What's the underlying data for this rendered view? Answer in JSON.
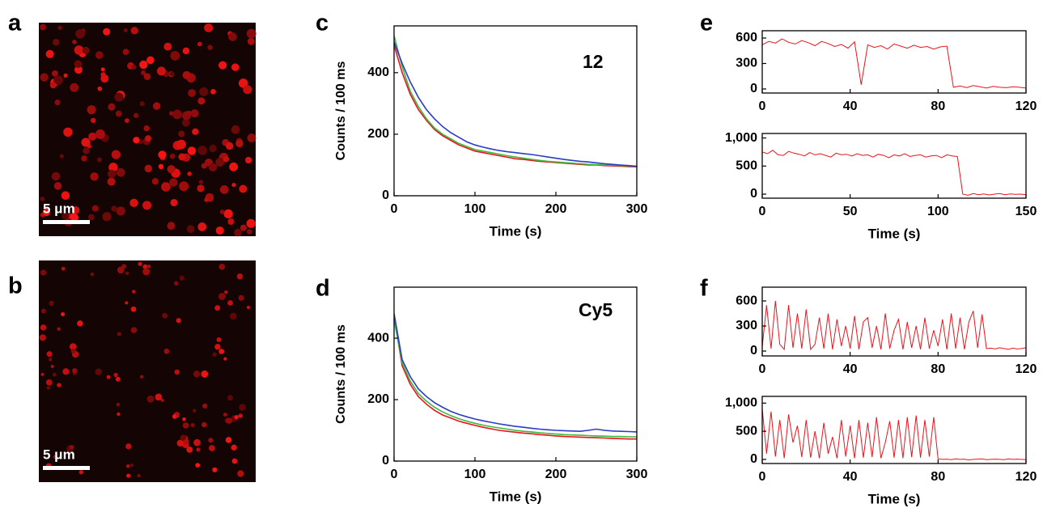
{
  "chart_data": [
    {
      "type": "image",
      "panel": "a",
      "scale_label": "5 μm"
    },
    {
      "type": "image",
      "panel": "b",
      "scale_label": "5 μm"
    },
    {
      "type": "line",
      "panel": "c",
      "annotation": "12",
      "xlabel": "Time (s)",
      "ylabel": "Counts / 100 ms",
      "xlim": [
        0,
        300
      ],
      "ylim": [
        0,
        552
      ],
      "xticks": [
        0,
        100,
        200,
        300
      ],
      "yticks": [
        0,
        200,
        400
      ],
      "x": [
        0,
        10,
        20,
        30,
        40,
        50,
        60,
        70,
        80,
        90,
        100,
        110,
        120,
        130,
        140,
        150,
        160,
        170,
        180,
        190,
        200,
        210,
        220,
        230,
        240,
        250,
        260,
        270,
        280,
        290,
        300
      ],
      "series": [
        {
          "color": "#e8141c",
          "values": [
            490,
            400,
            330,
            280,
            245,
            215,
            195,
            180,
            165,
            155,
            145,
            140,
            135,
            130,
            125,
            120,
            118,
            115,
            112,
            110,
            108,
            106,
            104,
            102,
            100,
            100,
            98,
            97,
            96,
            95,
            94
          ]
        },
        {
          "color": "#3cb93c",
          "values": [
            520,
            420,
            340,
            290,
            250,
            220,
            200,
            185,
            170,
            160,
            150,
            145,
            140,
            135,
            130,
            126,
            122,
            118,
            115,
            112,
            110,
            108,
            106,
            104,
            102,
            101,
            100,
            99,
            98,
            97,
            96
          ]
        },
        {
          "color": "#2b3bc4",
          "values": [
            500,
            430,
            370,
            320,
            280,
            250,
            225,
            205,
            190,
            175,
            165,
            158,
            152,
            147,
            143,
            140,
            137,
            134,
            130,
            126,
            122,
            118,
            115,
            112,
            110,
            107,
            104,
            102,
            100,
            98,
            96
          ]
        }
      ]
    },
    {
      "type": "line",
      "panel": "d",
      "annotation": "Cy5",
      "xlabel": "Time (s)",
      "ylabel": "Counts / 100 ms",
      "xlim": [
        0,
        300
      ],
      "ylim": [
        0,
        566
      ],
      "xticks": [
        0,
        100,
        200,
        300
      ],
      "yticks": [
        0,
        200,
        400
      ],
      "x": [
        0,
        10,
        20,
        30,
        40,
        50,
        60,
        70,
        80,
        90,
        100,
        110,
        120,
        130,
        140,
        150,
        160,
        170,
        180,
        190,
        200,
        210,
        220,
        230,
        240,
        250,
        260,
        270,
        280,
        290,
        300
      ],
      "series": [
        {
          "color": "#e8141c",
          "values": [
            470,
            310,
            250,
            210,
            185,
            165,
            150,
            140,
            130,
            123,
            116,
            110,
            105,
            100,
            97,
            94,
            91,
            89,
            86,
            84,
            82,
            80,
            79,
            78,
            77,
            76,
            75,
            74,
            73,
            72,
            72
          ]
        },
        {
          "color": "#3cb93c",
          "values": [
            460,
            320,
            260,
            220,
            195,
            175,
            160,
            148,
            138,
            130,
            123,
            117,
            112,
            108,
            104,
            100,
            97,
            95,
            92,
            90,
            88,
            86,
            85,
            84,
            83,
            82,
            81,
            80,
            80,
            79,
            79
          ]
        },
        {
          "color": "#2b3bc4",
          "values": [
            480,
            330,
            275,
            235,
            210,
            190,
            175,
            162,
            152,
            144,
            137,
            131,
            126,
            121,
            117,
            113,
            110,
            107,
            104,
            102,
            100,
            99,
            98,
            97,
            100,
            104,
            100,
            98,
            97,
            96,
            95
          ]
        }
      ]
    },
    {
      "type": "line",
      "panel": "e",
      "xlim": [
        0,
        120
      ],
      "ylim": [
        -48,
        686
      ],
      "xticks": [
        0,
        40,
        80,
        120
      ],
      "yticks": [
        0,
        300,
        600
      ],
      "x": [
        0,
        3,
        6,
        9,
        12,
        15,
        18,
        21,
        24,
        27,
        30,
        33,
        36,
        39,
        42,
        45,
        48,
        51,
        54,
        57,
        60,
        63,
        66,
        69,
        72,
        75,
        78,
        81,
        84,
        87,
        90,
        93,
        96,
        99,
        102,
        105,
        108,
        111,
        114,
        117,
        120
      ],
      "series": [
        {
          "color": "#e8141c",
          "values": [
            520,
            560,
            540,
            590,
            550,
            530,
            570,
            545,
            510,
            560,
            535,
            500,
            525,
            480,
            555,
            50,
            520,
            490,
            510,
            470,
            530,
            505,
            480,
            515,
            490,
            500,
            470,
            495,
            505,
            20,
            35,
            15,
            40,
            25,
            10,
            30,
            20,
            15,
            25,
            20,
            10
          ]
        }
      ]
    },
    {
      "type": "line",
      "xlabel": "Time (s)",
      "xlim": [
        0,
        150
      ],
      "ylim": [
        -72,
        1080
      ],
      "xticks": [
        0,
        50,
        100,
        150
      ],
      "yticks": [
        0,
        500,
        {
          "value": 1000,
          "label": "1,000"
        }
      ],
      "x": [
        0,
        3,
        6,
        9,
        12,
        15,
        18,
        21,
        24,
        27,
        30,
        33,
        36,
        39,
        42,
        45,
        48,
        51,
        54,
        57,
        60,
        63,
        66,
        69,
        72,
        75,
        78,
        81,
        84,
        87,
        90,
        93,
        96,
        99,
        102,
        105,
        108,
        111,
        114,
        117,
        120,
        123,
        126,
        129,
        132,
        135,
        138,
        141,
        144,
        147,
        150
      ],
      "series": [
        {
          "color": "#e8141c",
          "values": [
            750,
            720,
            780,
            700,
            690,
            760,
            730,
            710,
            680,
            740,
            700,
            720,
            690,
            660,
            730,
            700,
            710,
            680,
            720,
            690,
            700,
            660,
            710,
            690,
            650,
            700,
            680,
            720,
            670,
            690,
            700,
            660,
            680,
            690,
            650,
            700,
            680,
            670,
            0,
            -20,
            10,
            -10,
            5,
            -15,
            0,
            10,
            -10,
            5,
            -5,
            0,
            -10
          ]
        }
      ]
    },
    {
      "type": "line",
      "panel": "f",
      "xlim": [
        0,
        120
      ],
      "ylim": [
        -58,
        765
      ],
      "xticks": [
        0,
        40,
        80,
        120
      ],
      "yticks": [
        0,
        300,
        600
      ],
      "x": [
        0,
        2,
        4,
        6,
        8,
        10,
        12,
        14,
        16,
        18,
        20,
        22,
        24,
        26,
        28,
        30,
        32,
        34,
        36,
        38,
        40,
        42,
        44,
        46,
        48,
        50,
        52,
        54,
        56,
        58,
        60,
        62,
        64,
        66,
        68,
        70,
        72,
        74,
        76,
        78,
        80,
        82,
        84,
        86,
        88,
        90,
        92,
        94,
        96,
        98,
        100,
        102,
        104,
        106,
        108,
        110,
        112,
        114,
        116,
        118,
        120
      ],
      "series": [
        {
          "color": "#e8141c",
          "values": [
            50,
            550,
            30,
            600,
            80,
            20,
            550,
            40,
            450,
            30,
            500,
            20,
            80,
            400,
            30,
            450,
            20,
            380,
            60,
            300,
            30,
            420,
            20,
            350,
            400,
            40,
            300,
            20,
            450,
            30,
            250,
            380,
            20,
            350,
            40,
            300,
            20,
            400,
            30,
            250,
            60,
            380,
            20,
            450,
            30,
            400,
            20,
            350,
            480,
            40,
            440,
            30,
            35,
            25,
            40,
            30,
            20,
            35,
            25,
            30,
            40
          ]
        }
      ]
    },
    {
      "type": "line",
      "xlabel": "Time (s)",
      "xlim": [
        0,
        120
      ],
      "ylim": [
        -73,
        1120
      ],
      "xticks": [
        0,
        40,
        80,
        120
      ],
      "yticks": [
        0,
        500,
        {
          "value": 1000,
          "label": "1,000"
        }
      ],
      "x": [
        0,
        2,
        4,
        6,
        8,
        10,
        12,
        14,
        16,
        18,
        20,
        22,
        24,
        26,
        28,
        30,
        32,
        34,
        36,
        38,
        40,
        42,
        44,
        46,
        48,
        50,
        52,
        54,
        56,
        58,
        60,
        62,
        64,
        66,
        68,
        70,
        72,
        74,
        76,
        78,
        80,
        82,
        84,
        86,
        88,
        90,
        92,
        94,
        96,
        98,
        100,
        102,
        104,
        106,
        108,
        110,
        112,
        114,
        116,
        118,
        120
      ],
      "series": [
        {
          "color": "#e8141c",
          "values": [
            900,
            100,
            850,
            50,
            700,
            20,
            800,
            300,
            600,
            40,
            700,
            30,
            500,
            20,
            650,
            100,
            400,
            20,
            700,
            50,
            600,
            20,
            700,
            30,
            650,
            40,
            750,
            20,
            300,
            680,
            30,
            700,
            20,
            750,
            40,
            780,
            30,
            700,
            50,
            750,
            10,
            0,
            5,
            -5,
            10,
            0,
            5,
            -10,
            0,
            5,
            10,
            -5,
            0,
            5,
            0,
            -5,
            10,
            0,
            5,
            0,
            -5
          ]
        }
      ]
    }
  ]
}
